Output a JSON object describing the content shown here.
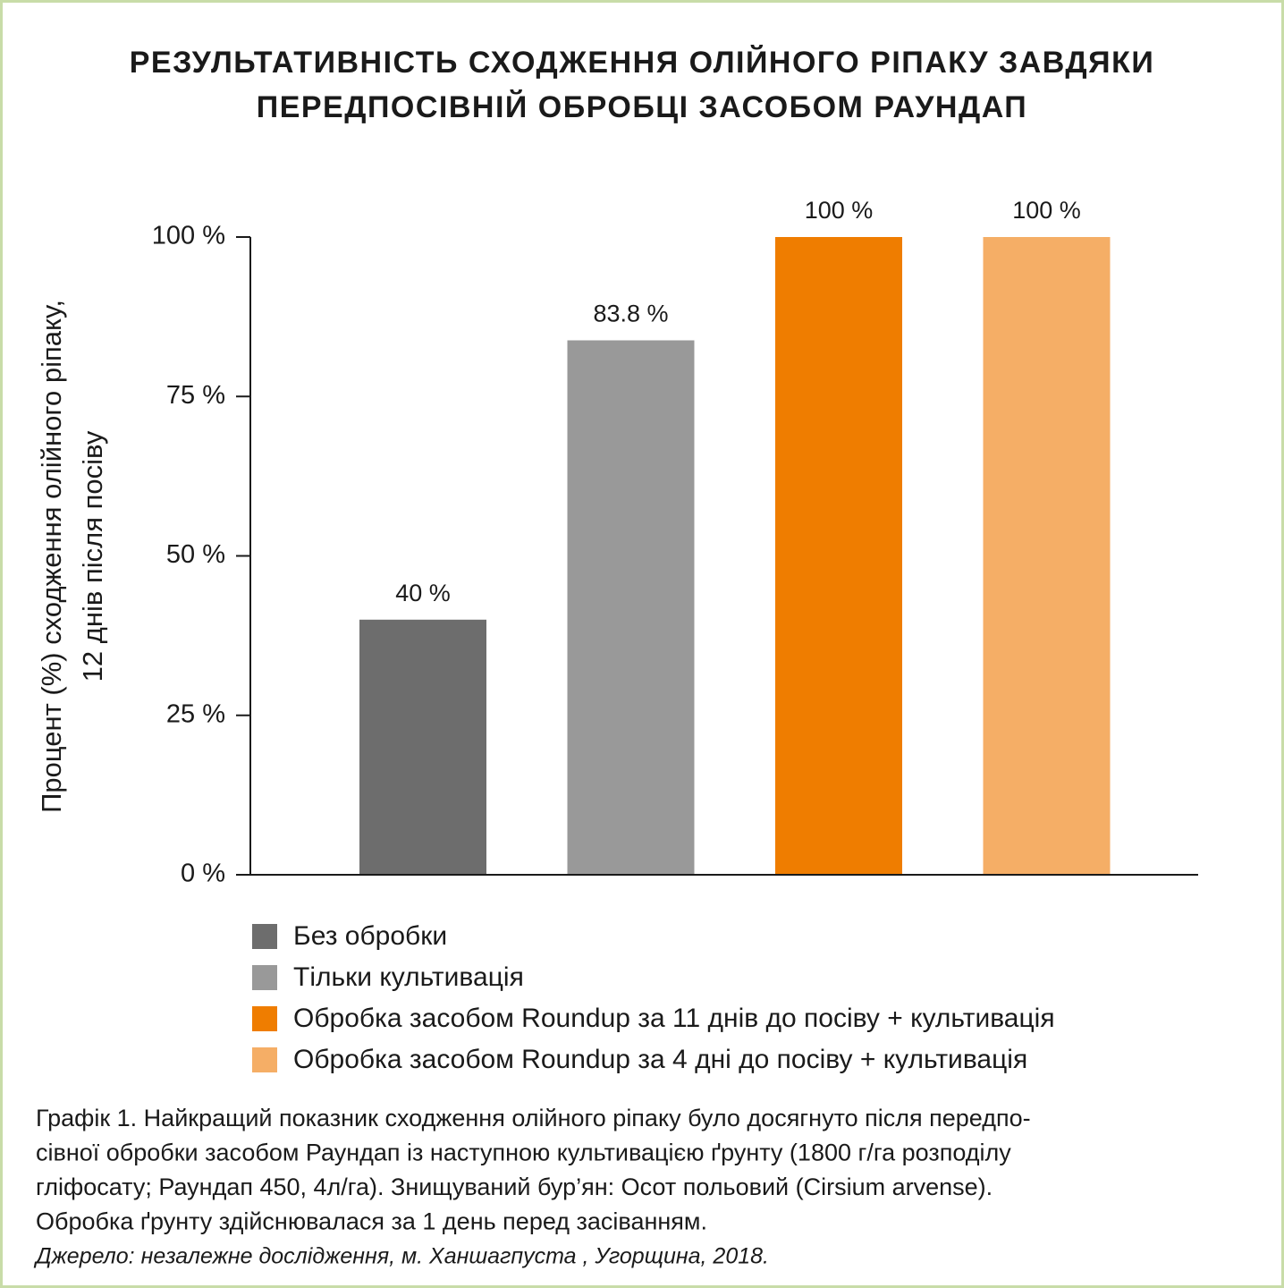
{
  "chart_data": {
    "type": "bar",
    "title": [
      "РЕЗУЛЬТАТИВНІСТЬ СХОДЖЕННЯ ОЛІЙНОГО РІПАКУ ЗАВДЯКИ",
      "ПЕРЕДПОСІВНІЙ ОБРОБЦІ ЗАСОБОМ РАУНДАП"
    ],
    "y_label": [
      "Процент (%) сходження олійного ріпаку,",
      "12 днів після посіву"
    ],
    "categories": [
      "Без обробки",
      "Тільки культивація",
      "Обробка засобом Roundup за 11 днів до посіву + культивація",
      "Обробка засобом Roundup за 4 дні до посіву + культивація"
    ],
    "values": [
      40,
      83.8,
      100,
      100
    ],
    "value_labels": [
      "40 %",
      "83.8 %",
      "100 %",
      "100 %"
    ],
    "colors": [
      "#6d6d6d",
      "#999999",
      "#ef7d00",
      "#f5ae66"
    ],
    "ylim": [
      0,
      100
    ],
    "yticks": [
      {
        "value": 0,
        "label": "0 %"
      },
      {
        "value": 25,
        "label": "25 %"
      },
      {
        "value": 50,
        "label": "50 %"
      },
      {
        "value": 75,
        "label": "75 %"
      },
      {
        "value": 100,
        "label": "100 %"
      }
    ],
    "caption": [
      "Графік 1. Найкращий показник сходження олійного ріпаку було досягнуто після передпо-",
      "сівної обробки засобом Раундап із наступною культивацією ґрунту (1800 г/га розподілу",
      "гліфосату; Раундап 450, 4л/га). Знищуваний бур’ян: Осот польовий (Cirsium arvense).",
      "Обробка ґрунту здійснювалася за 1 день перед засіванням."
    ],
    "source": "Джерело: незалежне дослідження, м. Ханшагпуста , Угорщина, 2018."
  }
}
